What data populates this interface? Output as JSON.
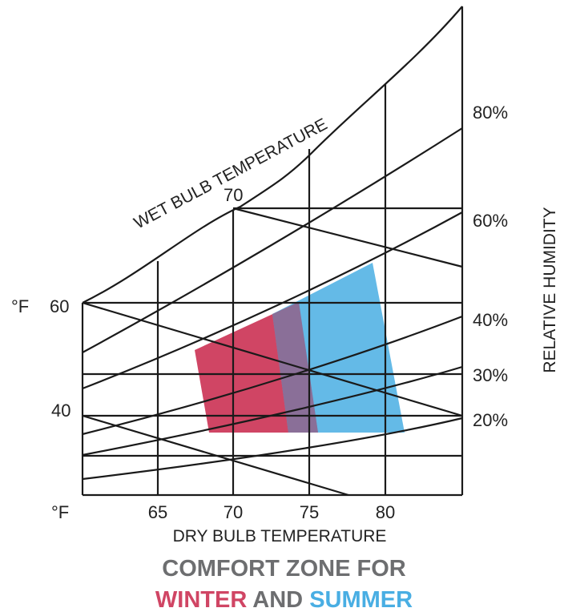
{
  "chart": {
    "wet_bulb_title": "WET BULB TEMPERATURE",
    "wet_bulb_tick": "70",
    "dry_bulb_title": "DRY BULB TEMPERATURE",
    "rh_title": "RELATIVE HUMIDITY",
    "unit_left": "°F",
    "unit_bottom": "°F",
    "left_ticks": [
      "60",
      "40"
    ],
    "bottom_ticks": [
      "65",
      "70",
      "75",
      "80"
    ],
    "rh_ticks": [
      "80%",
      "60%",
      "40%",
      "30%",
      "20%"
    ]
  },
  "zones": {
    "winter_color": "#d04564",
    "summer_color": "#49aee3",
    "overlap_color": "#8a6f98"
  },
  "caption": {
    "line1": "COMFORT ZONE FOR",
    "winter": "WINTER",
    "and": "AND",
    "summer": "SUMMER"
  }
}
